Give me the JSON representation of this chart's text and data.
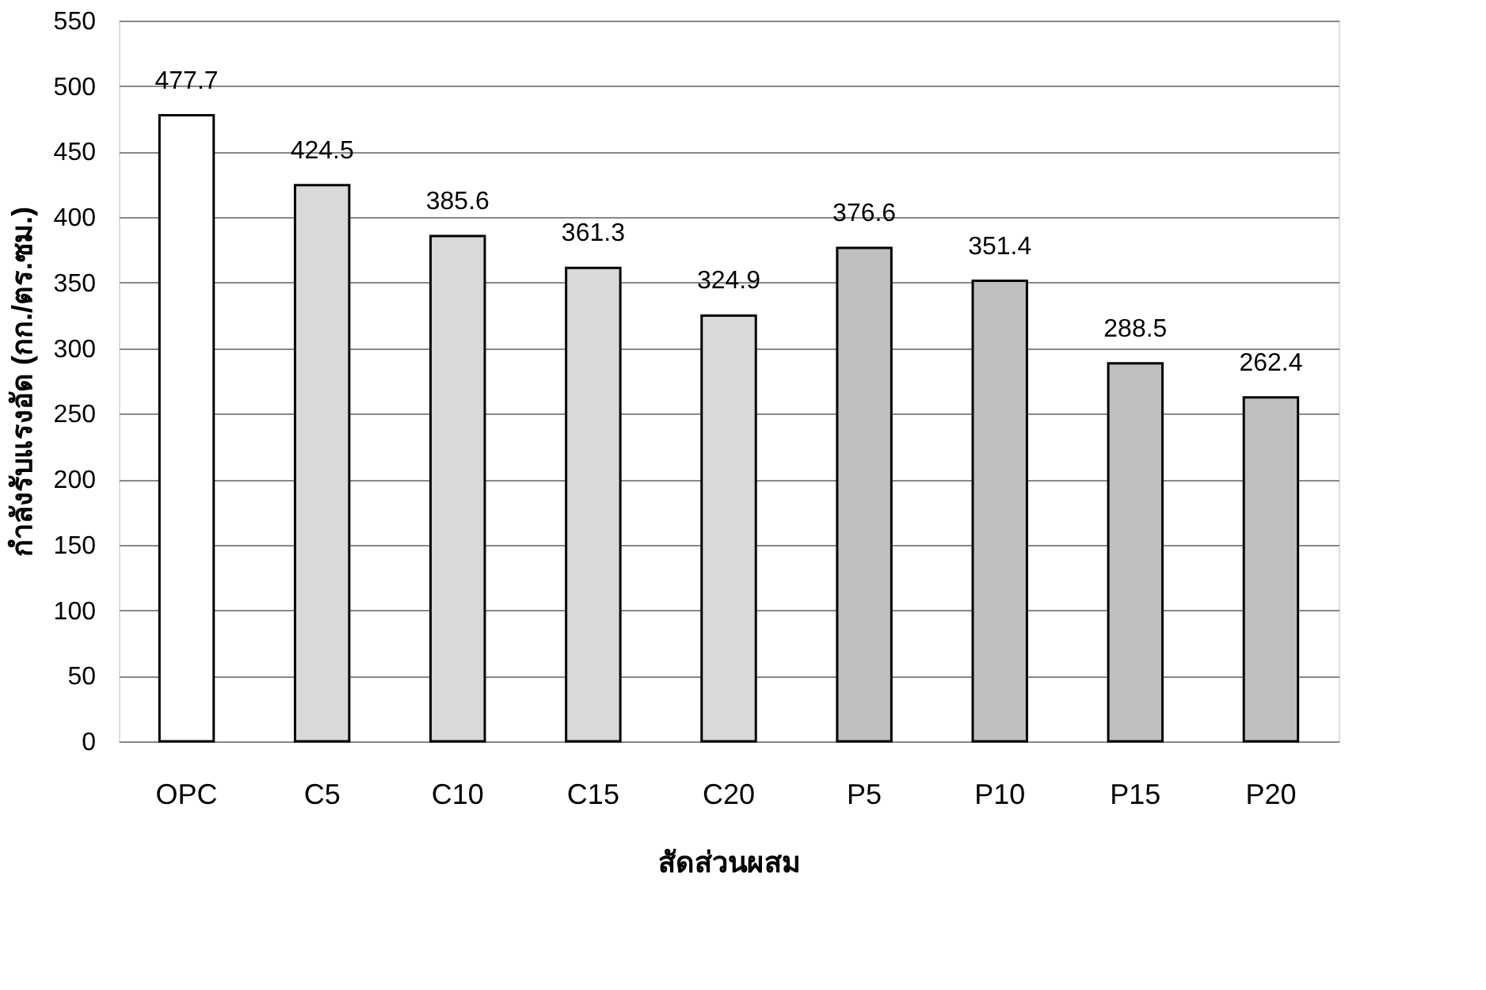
{
  "chart_data": {
    "type": "bar",
    "xlabel": "สัดส่วนผสม",
    "ylabel": "กำลังรับแรงอัด (กก./ตร.ซม.)",
    "categories": [
      "OPC",
      "C5",
      "C10",
      "C15",
      "C20",
      "P5",
      "P10",
      "P15",
      "P20"
    ],
    "values": [
      477.7,
      424.5,
      385.6,
      361.3,
      324.9,
      376.6,
      351.4,
      288.5,
      262.4
    ],
    "colors": [
      "#ffffff",
      "#d9d9d9",
      "#d9d9d9",
      "#d9d9d9",
      "#d9d9d9",
      "#bfbfbf",
      "#bfbfbf",
      "#bfbfbf",
      "#bfbfbf"
    ],
    "ylim": [
      0,
      550
    ],
    "yticks": [
      0,
      50,
      100,
      150,
      200,
      250,
      300,
      350,
      400,
      450,
      500,
      550
    ],
    "grid": "y",
    "data_labels": true
  }
}
